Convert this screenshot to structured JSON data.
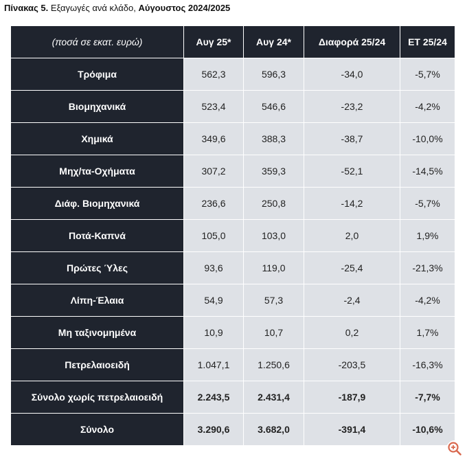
{
  "caption": {
    "prefix": "Πίνακας 5.",
    "text": " Εξαγωγές ανά κλάδο, ",
    "period": "Αύγουστος 2024/2025"
  },
  "table": {
    "columns": [
      "(ποσά σε εκατ. ευρώ)",
      "Αυγ 25*",
      "Αυγ 24*",
      "Διαφορά 25/24",
      "ΕΤ 25/24"
    ],
    "rows": [
      {
        "label": "Τρόφιμα",
        "cells": [
          "562,3",
          "596,3",
          "-34,0",
          "-5,7%"
        ],
        "bold": false
      },
      {
        "label": "Βιομηχανικά",
        "cells": [
          "523,4",
          "546,6",
          "-23,2",
          "-4,2%"
        ],
        "bold": false
      },
      {
        "label": "Χημικά",
        "cells": [
          "349,6",
          "388,3",
          "-38,7",
          "-10,0%"
        ],
        "bold": false
      },
      {
        "label": "Μηχ/τα-Οχήματα",
        "cells": [
          "307,2",
          "359,3",
          "-52,1",
          "-14,5%"
        ],
        "bold": false
      },
      {
        "label": "Διάφ. Βιομηχανικά",
        "cells": [
          "236,6",
          "250,8",
          "-14,2",
          "-5,7%"
        ],
        "bold": false
      },
      {
        "label": "Ποτά-Καπνά",
        "cells": [
          "105,0",
          "103,0",
          "2,0",
          "1,9%"
        ],
        "bold": false
      },
      {
        "label": "Πρώτες Ύλες",
        "cells": [
          "93,6",
          "119,0",
          "-25,4",
          "-21,3%"
        ],
        "bold": false
      },
      {
        "label": "Λίπη-Έλαια",
        "cells": [
          "54,9",
          "57,3",
          "-2,4",
          "-4,2%"
        ],
        "bold": false
      },
      {
        "label": "Μη ταξινομημένα",
        "cells": [
          "10,9",
          "10,7",
          "0,2",
          "1,7%"
        ],
        "bold": false
      },
      {
        "label": "Πετρελαιοειδή",
        "cells": [
          "1.047,1",
          "1.250,6",
          "-203,5",
          "-16,3%"
        ],
        "bold": false
      },
      {
        "label": "Σύνολο χωρίς πετρελαιοειδή",
        "cells": [
          "2.243,5",
          "2.431,4",
          "-187,9",
          "-7,7%"
        ],
        "bold": true
      },
      {
        "label": "Σύνολο",
        "cells": [
          "3.290,6",
          "3.682,0",
          "-391,4",
          "-10,6%"
        ],
        "bold": true
      }
    ]
  },
  "chart_data": {
    "type": "table",
    "columns": [
      "(ποσά σε εκατ. ευρώ)",
      "Αυγ 25*",
      "Αυγ 24*",
      "Διαφορά 25/24",
      "ΕΤ 25/24"
    ],
    "rows": [
      [
        "Τρόφιμα",
        562.3,
        596.3,
        -34.0,
        -5.7
      ],
      [
        "Βιομηχανικά",
        523.4,
        546.6,
        -23.2,
        -4.2
      ],
      [
        "Χημικά",
        349.6,
        388.3,
        -38.7,
        -10.0
      ],
      [
        "Μηχ/τα-Οχήματα",
        307.2,
        359.3,
        -52.1,
        -14.5
      ],
      [
        "Διάφ. Βιομηχανικά",
        236.6,
        250.8,
        -14.2,
        -5.7
      ],
      [
        "Ποτά-Καπνά",
        105.0,
        103.0,
        2.0,
        1.9
      ],
      [
        "Πρώτες Ύλες",
        93.6,
        119.0,
        -25.4,
        -21.3
      ],
      [
        "Λίπη-Έλαια",
        54.9,
        57.3,
        -2.4,
        -4.2
      ],
      [
        "Μη ταξινομημένα",
        10.9,
        10.7,
        0.2,
        1.7
      ],
      [
        "Πετρελαιοειδή",
        1047.1,
        1250.6,
        -203.5,
        -16.3
      ],
      [
        "Σύνολο χωρίς πετρελαιοειδή",
        2243.5,
        2431.4,
        -187.9,
        -7.7
      ],
      [
        "Σύνολο",
        3290.6,
        3682.0,
        -391.4,
        -10.6
      ]
    ]
  },
  "colors": {
    "dark_cell": "#1f242e",
    "light_cell": "#dee1e6",
    "zoom_icon": "#d9694f"
  },
  "icons": {
    "zoom": "zoom-in-icon"
  }
}
